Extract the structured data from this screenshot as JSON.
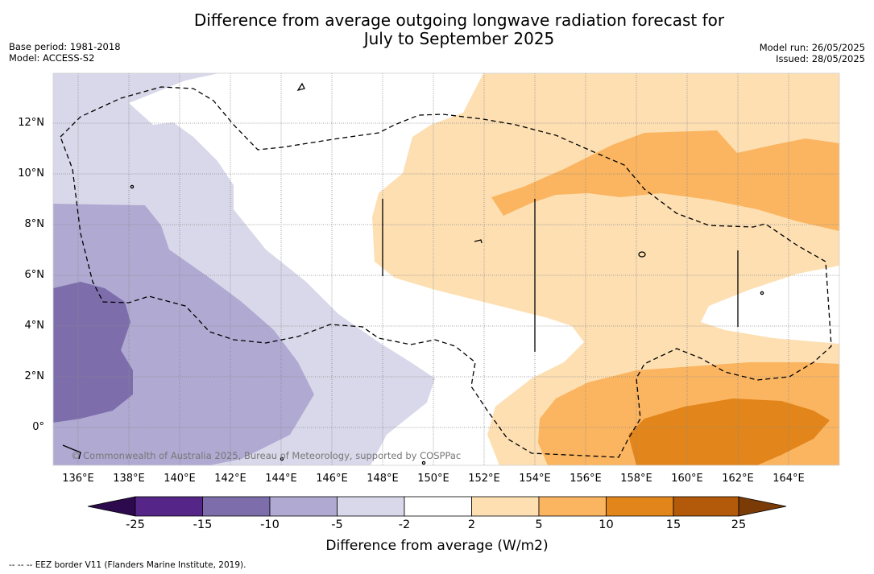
{
  "title_line1": "Difference from average outgoing longwave radiation forecast for",
  "title_line2": "July to September 2025",
  "meta": {
    "base_period": "Base period: 1981-2018",
    "model": "Model: ACCESS-S2",
    "model_run": "Model run: 26/05/2025",
    "issued": "Issued: 28/05/2025"
  },
  "y_ticks": [
    "12°N",
    "10°N",
    "8°N",
    "6°N",
    "4°N",
    "2°N",
    "0°"
  ],
  "x_ticks": [
    "136°E",
    "138°E",
    "140°E",
    "142°E",
    "144°E",
    "146°E",
    "148°E",
    "150°E",
    "152°E",
    "154°E",
    "156°E",
    "158°E",
    "160°E",
    "162°E",
    "164°E"
  ],
  "copyright": "© Commonwealth of Australia 2025, Bureau of Meteorology, supported by COSPPac",
  "colorbar": {
    "labels": [
      "-25",
      "-15",
      "-10",
      "-5",
      "-2",
      "2",
      "5",
      "10",
      "15",
      "25"
    ],
    "colors": [
      "#552687",
      "#7d6eab",
      "#b0a9d2",
      "#d9d8ea",
      "#ffffff",
      "#fddfb2",
      "#fbb560",
      "#e2851b",
      "#b25a0a"
    ],
    "under_color": "#2d0a4e",
    "over_color": "#7a3b06",
    "title": "Difference from average (W/m2)"
  },
  "footnote": "--  --  -- EEZ border V11 (Flanders Marine Institute, 2019)."
}
